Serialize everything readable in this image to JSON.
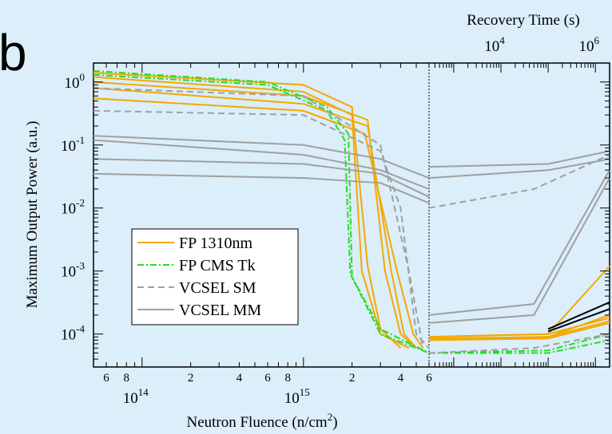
{
  "panel_label": "b",
  "chart_data": {
    "type": "line",
    "title": "",
    "xlabel": "Neutron Fluence (n/cm",
    "xlabel_sup": "2",
    "xlabel_tail": ")",
    "x2label": "Recovery Time (s)",
    "ylabel": "Maximum Output Power (a.u.)",
    "x_scale": "log",
    "y_scale": "log",
    "xlim": [
      50000000000000.0,
      6000000000000000.0
    ],
    "x2lim": [
      300,
      2000000
    ],
    "ylim": [
      3e-05,
      2
    ],
    "legend_position": "lower-left",
    "x_major_ticks": [
      {
        "value": 100000000000000.0,
        "base": "10",
        "exp": "14"
      },
      {
        "value": 1000000000000000.0,
        "base": "10",
        "exp": "15"
      }
    ],
    "x_minor_labels": [
      {
        "value": 60000000000000.0,
        "label": "6"
      },
      {
        "value": 80000000000000.0,
        "label": "8"
      },
      {
        "value": 200000000000000.0,
        "label": "2"
      },
      {
        "value": 400000000000000.0,
        "label": "4"
      },
      {
        "value": 600000000000000.0,
        "label": "6"
      },
      {
        "value": 800000000000000.0,
        "label": "8"
      },
      {
        "value": 2000000000000000.0,
        "label": "2"
      },
      {
        "value": 4000000000000000.0,
        "label": "4"
      },
      {
        "value": 6000000000000000.0,
        "label": "6"
      }
    ],
    "x2_major_ticks": [
      {
        "value": 10000,
        "base": "10",
        "exp": "4"
      },
      {
        "value": 1000000,
        "base": "10",
        "exp": "6"
      }
    ],
    "y_major_ticks": [
      {
        "value": 1,
        "base": "10",
        "exp": "0"
      },
      {
        "value": 0.1,
        "base": "10",
        "exp": "-1"
      },
      {
        "value": 0.01,
        "base": "10",
        "exp": "-2"
      },
      {
        "value": 0.001,
        "base": "10",
        "exp": "-3"
      },
      {
        "value": 0.0001,
        "base": "10",
        "exp": "-4"
      }
    ],
    "legend": [
      {
        "label": "FP 1310nm",
        "color": "#f5a800",
        "dash": "solid"
      },
      {
        "label": "FP CMS Tk",
        "color": "#22dd22",
        "dash": "dashdot"
      },
      {
        "label": "VCSEL SM",
        "color": "#a0a0a0",
        "dash": "dashed"
      },
      {
        "label": "VCSEL MM",
        "color": "#a0a0a0",
        "dash": "solid"
      }
    ],
    "series": [
      {
        "group": "FP 1310nm",
        "color": "#f5a800",
        "dash": "solid",
        "irr": [
          [
            50000000000000.0,
            1.4
          ],
          [
            1000000000000000.0,
            0.9
          ],
          [
            2000000000000000.0,
            0.4
          ],
          [
            2500000000000000.0,
            0.0012
          ],
          [
            3000000000000000.0,
            0.00012
          ],
          [
            4000000000000000.0,
            6e-05
          ]
        ],
        "rec": [
          [
            300,
            9e-05
          ],
          [
            100000.0,
            0.0001
          ],
          [
            2000000.0,
            0.0012
          ]
        ]
      },
      {
        "group": "FP 1310nm",
        "color": "#f5a800",
        "dash": "solid",
        "irr": [
          [
            50000000000000.0,
            1.2
          ],
          [
            1000000000000000.0,
            0.7
          ],
          [
            2000000000000000.0,
            0.3
          ],
          [
            2300000000000000.0,
            0.001
          ],
          [
            3000000000000000.0,
            0.0001
          ],
          [
            4500000000000000.0,
            6e-05
          ]
        ],
        "rec": [
          [
            300,
            8.5e-05
          ],
          [
            100000.0,
            9e-05
          ],
          [
            2000000.0,
            0.0002
          ]
        ]
      },
      {
        "group": "FP 1310nm",
        "color": "#f5a800",
        "dash": "solid",
        "irr": [
          [
            50000000000000.0,
            1
          ],
          [
            1000000000000000.0,
            0.6
          ],
          [
            2500000000000000.0,
            0.25
          ],
          [
            3200000000000000.0,
            0.001
          ],
          [
            4000000000000000.0,
            0.0001
          ],
          [
            5000000000000000.0,
            6e-05
          ]
        ],
        "rec": [
          [
            300,
            9e-05
          ],
          [
            100000.0,
            0.0001
          ],
          [
            2000000.0,
            0.00018
          ]
        ]
      },
      {
        "group": "FP 1310nm",
        "color": "#f5a800",
        "dash": "solid",
        "irr": [
          [
            50000000000000.0,
            0.8
          ],
          [
            1000000000000000.0,
            0.45
          ],
          [
            2500000000000000.0,
            0.2
          ],
          [
            3500000000000000.0,
            0.001
          ],
          [
            4200000000000000.0,
            0.0001
          ],
          [
            5000000000000000.0,
            6e-05
          ]
        ],
        "rec": [
          [
            300,
            8e-05
          ],
          [
            100000.0,
            8.5e-05
          ],
          [
            2000000.0,
            0.00015
          ]
        ]
      },
      {
        "group": "FP 1310nm",
        "color": "#f5a800",
        "dash": "solid",
        "irr": [
          [
            50000000000000.0,
            0.55
          ],
          [
            1000000000000000.0,
            0.35
          ],
          [
            2400000000000000.0,
            0.15
          ],
          [
            3800000000000000.0,
            0.001
          ],
          [
            4800000000000000.0,
            0.0001
          ],
          [
            5500000000000000.0,
            6e-05
          ]
        ],
        "rec": [
          [
            300,
            8.5e-05
          ],
          [
            100000.0,
            9e-05
          ],
          [
            2000000.0,
            0.00016
          ]
        ]
      },
      {
        "group": "FP 1310nm",
        "color": "#000000",
        "dash": "solid",
        "irr": [],
        "rec": [
          [
            100000.0,
            0.00012
          ],
          [
            2000000.0,
            0.00032
          ]
        ]
      },
      {
        "group": "FP 1310nm",
        "color": "#000000",
        "dash": "solid",
        "irr": [],
        "rec": [
          [
            100000.0,
            0.00011
          ],
          [
            2000000.0,
            0.00025
          ]
        ]
      },
      {
        "group": "FP CMS Tk",
        "color": "#22dd22",
        "dash": "dashdot",
        "irr": [
          [
            50000000000000.0,
            1.5
          ],
          [
            600000000000000.0,
            1
          ],
          [
            1400000000000000.0,
            0.4
          ],
          [
            1900000000000000.0,
            0.15
          ],
          [
            2000000000000000.0,
            0.0008
          ],
          [
            3000000000000000.0,
            0.0001
          ],
          [
            6000000000000000.0,
            5e-05
          ]
        ],
        "rec": [
          [
            300,
            5e-05
          ],
          [
            100000.0,
            5.5e-05
          ],
          [
            2000000.0,
            0.0001
          ]
        ]
      },
      {
        "group": "FP CMS Tk",
        "color": "#22dd22",
        "dash": "dashdot",
        "irr": [
          [
            50000000000000.0,
            1.3
          ],
          [
            600000000000000.0,
            0.9
          ],
          [
            1400000000000000.0,
            0.35
          ],
          [
            1800000000000000.0,
            0.12
          ],
          [
            1950000000000000.0,
            0.0009
          ],
          [
            3000000000000000.0,
            0.00012
          ],
          [
            6000000000000000.0,
            5e-05
          ]
        ],
        "rec": [
          [
            300,
            5e-05
          ],
          [
            100000.0,
            5e-05
          ],
          [
            2000000.0,
            8e-05
          ]
        ]
      },
      {
        "group": "VCSEL SM",
        "color": "#a0a0a0",
        "dash": "dashed",
        "irr": [
          [
            50000000000000.0,
            0.8
          ],
          [
            1000000000000000.0,
            0.6
          ],
          [
            3000000000000000.0,
            0.1
          ],
          [
            4500000000000000.0,
            0.001
          ],
          [
            5500000000000000.0,
            6e-05
          ]
        ],
        "rec": [
          [
            300,
            5e-05
          ],
          [
            50000.0,
            6e-05
          ],
          [
            2000000.0,
            0.0001
          ]
        ]
      },
      {
        "group": "VCSEL SM",
        "color": "#a0a0a0",
        "dash": "dashed",
        "irr": [
          [
            50000000000000.0,
            0.35
          ],
          [
            1000000000000000.0,
            0.3
          ],
          [
            3000000000000000.0,
            0.08
          ],
          [
            4000000000000000.0,
            0.01
          ],
          [
            5000000000000000.0,
            0.0001
          ],
          [
            6000000000000000.0,
            6e-05
          ]
        ],
        "rec": [
          [
            300,
            0.01
          ],
          [
            50000.0,
            0.02
          ],
          [
            2000000.0,
            0.07
          ]
        ]
      },
      {
        "group": "VCSEL MM",
        "color": "#a0a0a0",
        "dash": "solid",
        "irr": [
          [
            50000000000000.0,
            0.14
          ],
          [
            1000000000000000.0,
            0.1
          ],
          [
            3000000000000000.0,
            0.06
          ],
          [
            6000000000000000.0,
            0.03
          ]
        ],
        "rec": [
          [
            300,
            0.045
          ],
          [
            100000.0,
            0.05
          ],
          [
            2000000.0,
            0.08
          ]
        ]
      },
      {
        "group": "VCSEL MM",
        "color": "#a0a0a0",
        "dash": "solid",
        "irr": [
          [
            50000000000000.0,
            0.12
          ],
          [
            1000000000000000.0,
            0.07
          ],
          [
            3000000000000000.0,
            0.04
          ],
          [
            6000000000000000.0,
            0.02
          ]
        ],
        "rec": [
          [
            300,
            0.03
          ],
          [
            100000.0,
            0.04
          ],
          [
            2000000.0,
            0.06
          ]
        ]
      },
      {
        "group": "VCSEL MM",
        "color": "#a0a0a0",
        "dash": "solid",
        "irr": [
          [
            50000000000000.0,
            0.06
          ],
          [
            1000000000000000.0,
            0.05
          ],
          [
            3000000000000000.0,
            0.035
          ],
          [
            6000000000000000.0,
            0.015
          ]
        ],
        "rec": [
          [
            300,
            0.0002
          ],
          [
            50000.0,
            0.0003
          ],
          [
            2000000.0,
            0.04
          ]
        ]
      },
      {
        "group": "VCSEL MM",
        "color": "#a0a0a0",
        "dash": "solid",
        "irr": [
          [
            50000000000000.0,
            0.035
          ],
          [
            1000000000000000.0,
            0.03
          ],
          [
            3000000000000000.0,
            0.025
          ],
          [
            6000000000000000.0,
            0.012
          ]
        ],
        "rec": [
          [
            300,
            0.00015
          ],
          [
            50000.0,
            0.0002
          ],
          [
            2000000.0,
            0.03
          ]
        ]
      }
    ]
  }
}
